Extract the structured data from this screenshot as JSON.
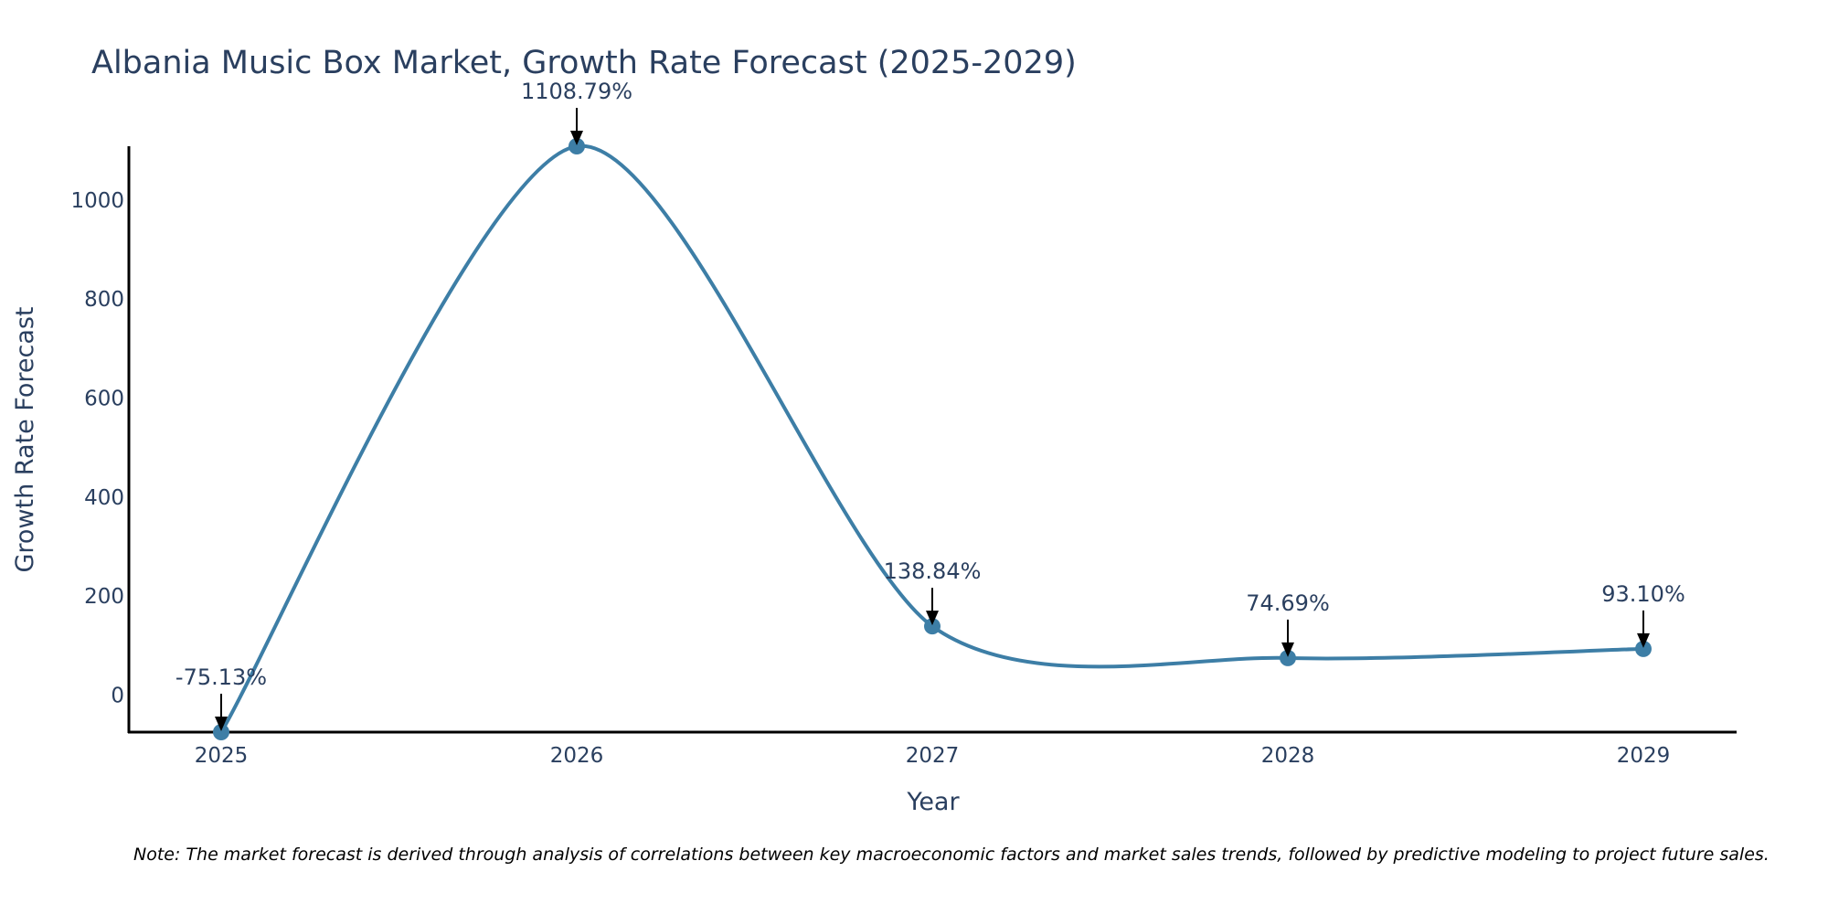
{
  "chart_data": {
    "type": "line",
    "title": "Albania Music Box Market, Growth Rate Forecast (2025-2029)",
    "xlabel": "Year",
    "ylabel": "Growth Rate Forecast",
    "categories": [
      "2025",
      "2026",
      "2027",
      "2028",
      "2029"
    ],
    "series": [
      {
        "name": "Growth Rate Forecast",
        "values": [
          -75.13,
          1108.79,
          138.84,
          74.69,
          93.1
        ],
        "labels": [
          "-75.13%",
          "1108.79%",
          "138.84%",
          "74.69%",
          "93.10%"
        ]
      }
    ],
    "yticks": [
      0,
      200,
      400,
      600,
      800,
      1000
    ],
    "ylim": [
      -75.13,
      1108.79
    ],
    "line_shape": "spline",
    "line_color": "#3d7ea6",
    "grid": false,
    "note": "Note: The market forecast is derived through analysis of correlations between key macroeconomic factors and market sales trends, followed by predictive modeling to project future sales."
  }
}
